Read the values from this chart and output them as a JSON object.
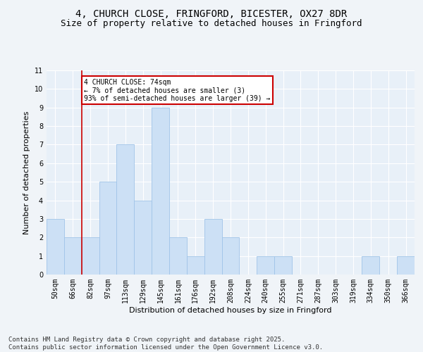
{
  "title_line1": "4, CHURCH CLOSE, FRINGFORD, BICESTER, OX27 8DR",
  "title_line2": "Size of property relative to detached houses in Fringford",
  "xlabel": "Distribution of detached houses by size in Fringford",
  "ylabel": "Number of detached properties",
  "categories": [
    "50sqm",
    "66sqm",
    "82sqm",
    "97sqm",
    "113sqm",
    "129sqm",
    "145sqm",
    "161sqm",
    "176sqm",
    "192sqm",
    "208sqm",
    "224sqm",
    "240sqm",
    "255sqm",
    "271sqm",
    "287sqm",
    "303sqm",
    "319sqm",
    "334sqm",
    "350sqm",
    "366sqm"
  ],
  "values": [
    3,
    2,
    2,
    5,
    7,
    4,
    9,
    2,
    1,
    3,
    2,
    0,
    1,
    1,
    0,
    0,
    0,
    0,
    1,
    0,
    1
  ],
  "bar_color": "#cce0f5",
  "bar_edge_color": "#a0c4e8",
  "annotation_line1": "4 CHURCH CLOSE: 74sqm",
  "annotation_line2": "← 7% of detached houses are smaller (3)",
  "annotation_line3": "93% of semi-detached houses are larger (39) →",
  "annotation_box_color": "#ffffff",
  "annotation_box_edge_color": "#cc0000",
  "property_line_x": 1.5,
  "ylim_max": 11,
  "yticks": [
    0,
    1,
    2,
    3,
    4,
    5,
    6,
    7,
    8,
    9,
    10,
    11
  ],
  "background_color": "#e8f0f8",
  "grid_color": "#ffffff",
  "footer_line1": "Contains HM Land Registry data © Crown copyright and database right 2025.",
  "footer_line2": "Contains public sector information licensed under the Open Government Licence v3.0.",
  "title_fontsize": 10,
  "subtitle_fontsize": 9,
  "axis_label_fontsize": 8,
  "tick_fontsize": 7,
  "annotation_fontsize": 7,
  "footer_fontsize": 6.5
}
